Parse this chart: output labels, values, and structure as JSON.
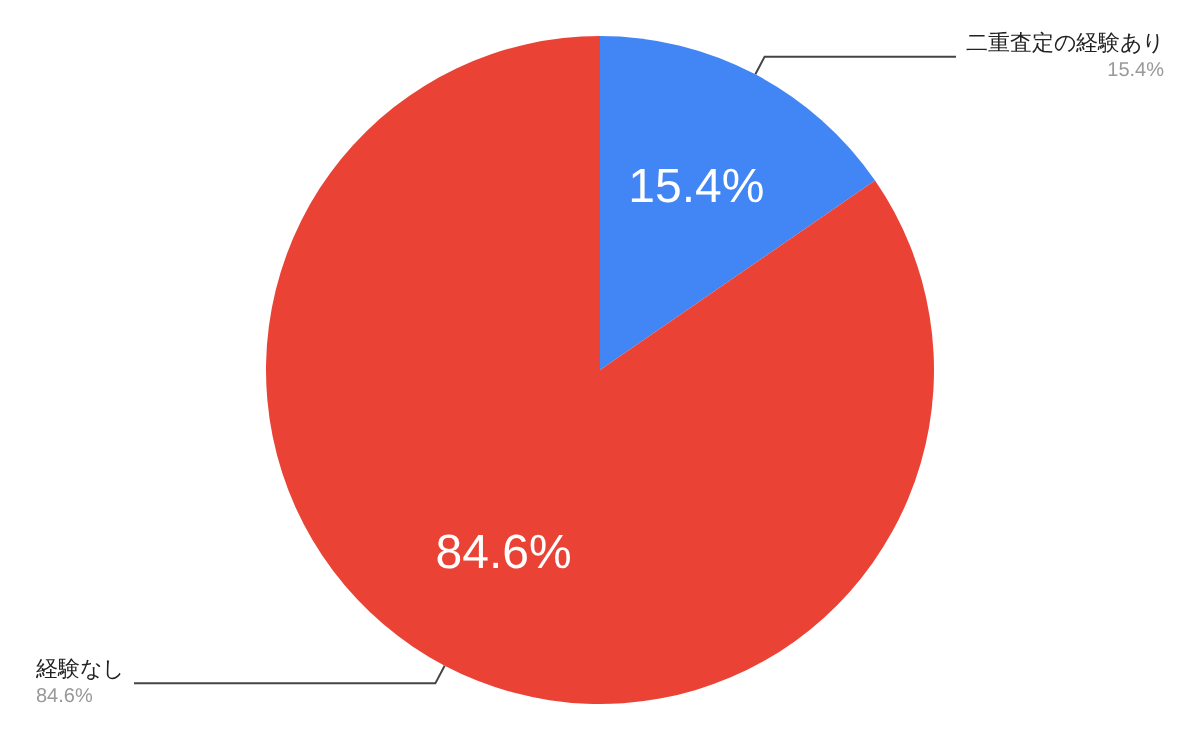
{
  "chart_data": {
    "type": "pie",
    "categories": [
      "二重査定の経験あり",
      "経験なし"
    ],
    "values": [
      15.4,
      84.6
    ],
    "colors": [
      "#4285f4",
      "#ea4335"
    ],
    "value_labels": [
      "15.4%",
      "84.6%"
    ]
  }
}
